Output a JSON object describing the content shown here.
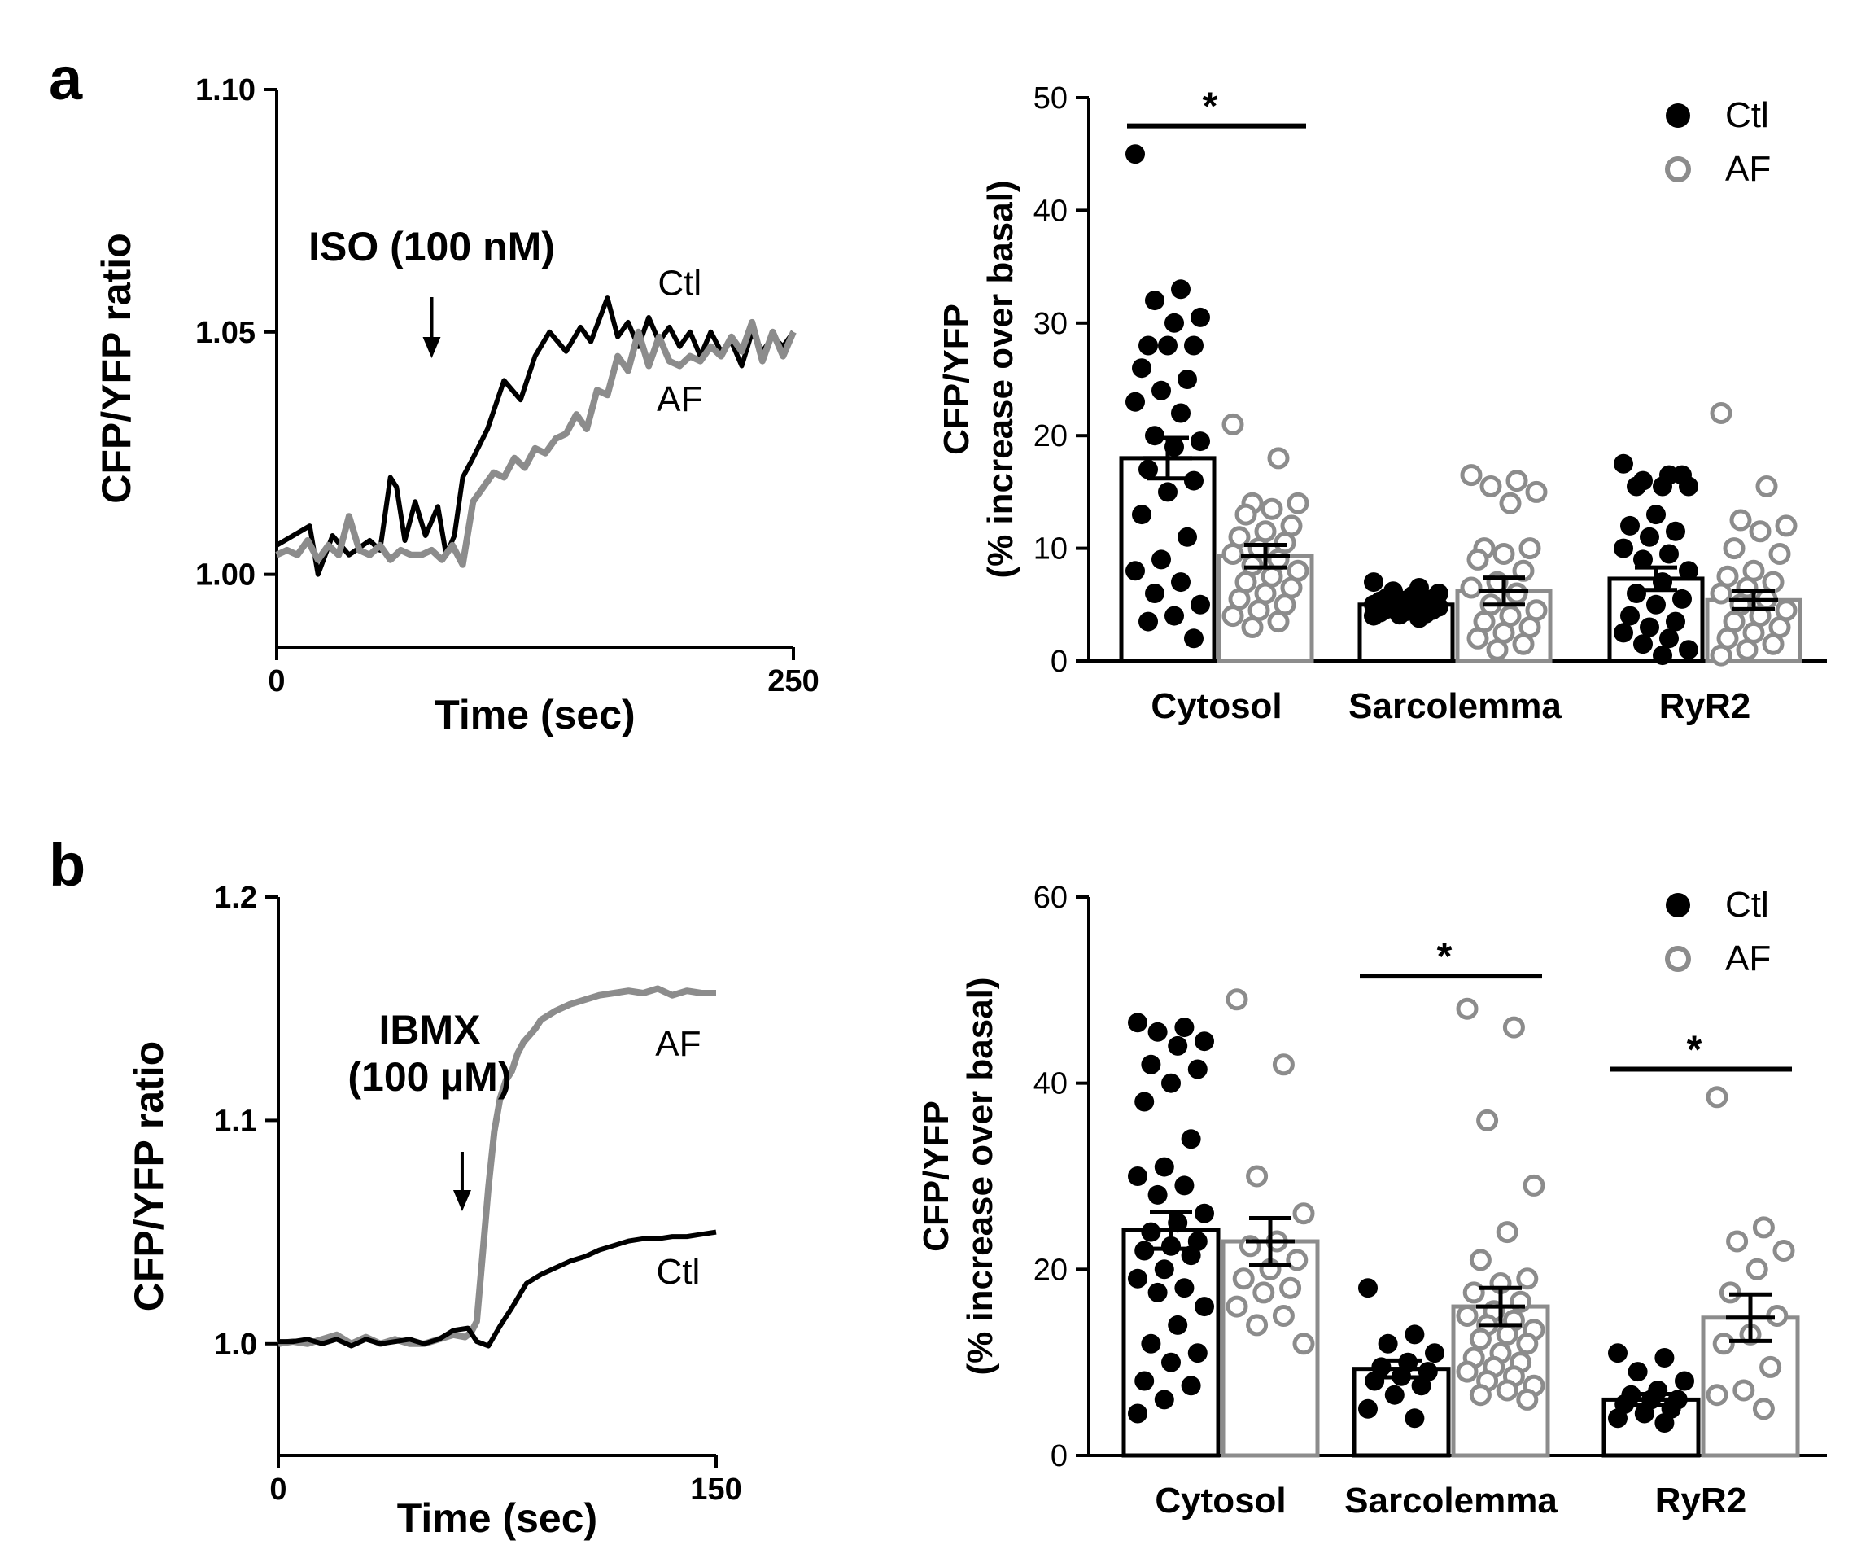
{
  "colors": {
    "ctl": "#000000",
    "af": "#8c8c8c",
    "axis": "#000000"
  },
  "panel_labels": [
    "a",
    "b"
  ],
  "chart_data": [
    {
      "type": "line",
      "panel": "a",
      "ylabel": "CFP/YFP ratio",
      "xlabel": "Time (sec)",
      "xlim": [
        0,
        250
      ],
      "ylim": [
        0.985,
        1.1
      ],
      "xticks": [
        0,
        250
      ],
      "yticks": [
        1.0,
        1.05,
        1.1
      ],
      "ytick_labels": [
        "1.00",
        "1.05",
        "1.10"
      ],
      "xtick_labels": [
        "0",
        "250"
      ],
      "annotation": {
        "text": "ISO (100 nM)",
        "arrow_x": 75
      },
      "series": [
        {
          "name": "Ctl",
          "label_x": 195,
          "label_y": 1.06,
          "x": [
            0,
            8,
            16,
            20,
            27,
            35,
            45,
            50,
            55,
            58,
            62,
            67,
            72,
            78,
            82,
            86,
            90,
            95,
            102,
            110,
            118,
            125,
            132,
            140,
            147,
            152,
            160,
            165,
            170,
            175,
            180,
            185,
            190,
            195,
            200,
            205,
            210,
            215,
            220,
            225,
            230,
            235,
            240,
            245,
            250
          ],
          "y": [
            1.006,
            1.008,
            1.01,
            1.0,
            1.008,
            1.004,
            1.007,
            1.005,
            1.02,
            1.018,
            1.007,
            1.015,
            1.008,
            1.014,
            1.004,
            1.008,
            1.02,
            1.024,
            1.03,
            1.04,
            1.036,
            1.045,
            1.05,
            1.046,
            1.051,
            1.048,
            1.057,
            1.049,
            1.052,
            1.047,
            1.053,
            1.048,
            1.051,
            1.047,
            1.05,
            1.045,
            1.05,
            1.046,
            1.048,
            1.043,
            1.05,
            1.046,
            1.049,
            1.047,
            1.05
          ]
        },
        {
          "name": "AF",
          "label_x": 195,
          "label_y": 1.036,
          "x": [
            0,
            5,
            10,
            15,
            20,
            25,
            30,
            35,
            40,
            45,
            50,
            55,
            60,
            65,
            70,
            75,
            80,
            85,
            90,
            95,
            100,
            105,
            110,
            115,
            120,
            125,
            130,
            135,
            140,
            145,
            150,
            155,
            160,
            165,
            170,
            175,
            180,
            185,
            190,
            195,
            200,
            205,
            210,
            215,
            220,
            225,
            230,
            235,
            240,
            245,
            250
          ],
          "y": [
            1.004,
            1.005,
            1.004,
            1.007,
            1.003,
            1.006,
            1.004,
            1.012,
            1.005,
            1.004,
            1.006,
            1.003,
            1.005,
            1.004,
            1.004,
            1.005,
            1.003,
            1.006,
            1.002,
            1.015,
            1.018,
            1.021,
            1.02,
            1.024,
            1.022,
            1.026,
            1.025,
            1.028,
            1.029,
            1.033,
            1.03,
            1.038,
            1.037,
            1.045,
            1.042,
            1.05,
            1.043,
            1.049,
            1.044,
            1.043,
            1.045,
            1.044,
            1.047,
            1.045,
            1.049,
            1.046,
            1.052,
            1.044,
            1.05,
            1.045,
            1.05
          ]
        }
      ]
    },
    {
      "type": "bar",
      "panel": "a",
      "ylabel_lines": [
        "CFP/YFP",
        "(% increase over basal)"
      ],
      "ylim": [
        0,
        50
      ],
      "yticks": [
        0,
        10,
        20,
        30,
        40,
        50
      ],
      "ytick_labels": [
        "0",
        "10",
        "20",
        "30",
        "40",
        "50"
      ],
      "categories": [
        "Cytosol",
        "Sarcolemma",
        "RyR2"
      ],
      "legend": {
        "position": "top-right",
        "entries": [
          "Ctl",
          "AF"
        ]
      },
      "significance": [
        {
          "category": 0,
          "label": "*",
          "y": 47.5
        }
      ],
      "series": [
        {
          "name": "Ctl",
          "values": [
            18,
            5,
            7.3
          ],
          "sem": [
            1.8,
            0.4,
            1.0
          ],
          "points": [
            [
              45,
              33,
              32,
              30.5,
              30,
              28,
              28,
              28,
              26,
              25,
              24,
              23,
              22,
              20,
              19.5,
              19,
              17,
              16,
              15,
              13,
              11,
              9,
              8,
              7,
              6,
              5,
              4,
              3.5,
              2
            ],
            [
              7,
              6.5,
              6.2,
              6,
              5.8,
              5.6,
              5.5,
              5.4,
              5.3,
              5.2,
              5.1,
              5,
              5,
              4.9,
              4.8,
              4.7,
              4.6,
              4.5,
              4.4,
              4.3,
              4.2,
              4.1,
              4,
              3.8
            ],
            [
              17.5,
              16.5,
              16,
              15.5,
              15.5,
              15.5,
              16.5,
              13,
              12,
              11.5,
              11,
              10,
              9.5,
              9,
              8,
              7,
              6,
              5.5,
              5,
              4,
              3.5,
              3,
              2.5,
              2,
              1.5,
              1,
              0.5
            ]
          ]
        },
        {
          "name": "AF",
          "values": [
            9.3,
            6.2,
            5.4
          ],
          "sem": [
            1.0,
            1.2,
            0.8
          ],
          "points": [
            [
              21,
              18,
              14,
              14,
              13.5,
              13,
              12,
              11.5,
              11,
              10.5,
              10,
              9.5,
              9,
              8.5,
              8,
              7.5,
              7,
              6.5,
              6,
              5.5,
              5,
              4.5,
              4,
              3.5,
              3
            ],
            [
              16.5,
              16,
              15.5,
              15,
              14,
              10,
              10,
              9.5,
              9,
              8,
              7,
              6.5,
              6,
              5,
              4.5,
              4,
              3.5,
              3,
              2.5,
              2,
              1.5,
              1
            ],
            [
              22,
              15.5,
              12.5,
              12,
              11.5,
              10,
              9.5,
              8,
              7.5,
              7,
              6.5,
              6,
              5.5,
              5,
              4.5,
              4,
              3.5,
              3,
              2.5,
              2,
              1.5,
              1,
              0.5
            ]
          ]
        }
      ]
    },
    {
      "type": "line",
      "panel": "b",
      "ylabel": "CFP/YFP ratio",
      "xlabel": "Time (sec)",
      "xlim": [
        0,
        150
      ],
      "ylim": [
        0.95,
        1.2
      ],
      "xticks": [
        0,
        150
      ],
      "yticks": [
        1.0,
        1.1,
        1.2
      ],
      "ytick_labels": [
        "1.0",
        "1.1",
        "1.2"
      ],
      "xtick_labels": [
        "0",
        "150"
      ],
      "annotation": {
        "text_lines": [
          "IBMX",
          "(100 µM)"
        ],
        "arrow_x": 63
      },
      "series": [
        {
          "name": "AF",
          "label_x": 137,
          "label_y": 1.134,
          "x": [
            0,
            5,
            10,
            15,
            20,
            25,
            30,
            35,
            40,
            45,
            50,
            55,
            60,
            64,
            66,
            68,
            70,
            72,
            74,
            76,
            78,
            80,
            82,
            84,
            86,
            88,
            90,
            95,
            100,
            105,
            110,
            115,
            120,
            125,
            130,
            135,
            140,
            145,
            150
          ],
          "y": [
            1.0,
            1.001,
            1.0,
            1.002,
            1.004,
            1.0,
            1.003,
            1.0,
            1.002,
            1.0,
            1.0,
            1.002,
            1.004,
            1.003,
            1.005,
            1.01,
            1.04,
            1.07,
            1.095,
            1.11,
            1.118,
            1.122,
            1.13,
            1.135,
            1.138,
            1.141,
            1.145,
            1.149,
            1.152,
            1.154,
            1.156,
            1.157,
            1.158,
            1.157,
            1.159,
            1.156,
            1.158,
            1.157,
            1.157
          ]
        },
        {
          "name": "Ctl",
          "label_x": 137,
          "label_y": 1.032,
          "x": [
            0,
            5,
            10,
            15,
            20,
            25,
            30,
            35,
            40,
            45,
            50,
            55,
            60,
            65,
            68,
            72,
            76,
            80,
            85,
            90,
            95,
            100,
            105,
            110,
            115,
            120,
            125,
            130,
            135,
            140,
            145,
            150
          ],
          "y": [
            1.001,
            1.001,
            1.002,
            1.0,
            1.002,
            0.999,
            1.002,
            1.0,
            1.001,
            1.002,
            1.0,
            1.002,
            1.006,
            1.007,
            1.001,
            0.999,
            1.008,
            1.016,
            1.027,
            1.031,
            1.034,
            1.037,
            1.039,
            1.042,
            1.044,
            1.046,
            1.047,
            1.047,
            1.048,
            1.048,
            1.049,
            1.05
          ]
        }
      ]
    },
    {
      "type": "bar",
      "panel": "b",
      "ylabel_lines": [
        "CFP/YFP",
        "(% increase over basal)"
      ],
      "ylim": [
        0,
        60
      ],
      "yticks": [
        0,
        20,
        40,
        60
      ],
      "ytick_labels": [
        "0",
        "20",
        "40",
        "60"
      ],
      "categories": [
        "Cytosol",
        "Sarcolemma",
        "RyR2"
      ],
      "legend": {
        "position": "top-right",
        "entries": [
          "Ctl",
          "AF"
        ]
      },
      "significance": [
        {
          "category": 1,
          "label": "*",
          "y": 51.5
        },
        {
          "category": 2,
          "label": "*",
          "y": 41.5
        }
      ],
      "series": [
        {
          "name": "Ctl",
          "values": [
            24.2,
            9.3,
            6.0
          ],
          "sem": [
            2.0,
            0.9,
            0.6
          ],
          "points": [
            [
              46.5,
              46,
              45.5,
              44.5,
              44,
              42,
              41.5,
              40,
              38,
              34,
              31,
              30,
              29,
              28,
              26,
              25,
              24,
              23,
              22.5,
              22,
              21.5,
              20,
              19,
              18,
              17.5,
              16,
              14,
              12,
              11,
              10,
              8,
              7.5,
              6,
              4.5
            ],
            [
              18,
              13,
              12,
              11,
              10,
              9.5,
              9,
              8.5,
              8,
              7.5,
              6.5,
              5,
              4
            ],
            [
              11,
              10.5,
              9,
              8,
              7,
              6.5,
              6,
              6,
              5.5,
              5,
              4.5,
              4,
              3.5
            ]
          ]
        },
        {
          "name": "AF",
          "values": [
            23.0,
            16.0,
            14.8
          ],
          "sem": [
            2.5,
            2.0,
            2.5
          ],
          "points": [
            [
              49,
              42,
              30,
              26,
              23,
              22.5,
              21,
              20,
              19,
              18,
              17.5,
              16,
              15,
              14,
              12
            ],
            [
              48,
              46,
              36,
              29,
              24,
              21,
              19,
              18.5,
              17.5,
              16.5,
              15.5,
              15,
              14.5,
              14,
              13.5,
              13,
              12.5,
              12,
              11,
              10.5,
              10,
              9.5,
              9,
              8.5,
              8,
              7.5,
              7,
              6.5,
              6
            ],
            [
              38.5,
              24.5,
              23,
              22,
              20,
              17.5,
              15,
              13,
              12,
              9.5,
              7,
              6.5,
              5
            ]
          ]
        }
      ]
    }
  ]
}
